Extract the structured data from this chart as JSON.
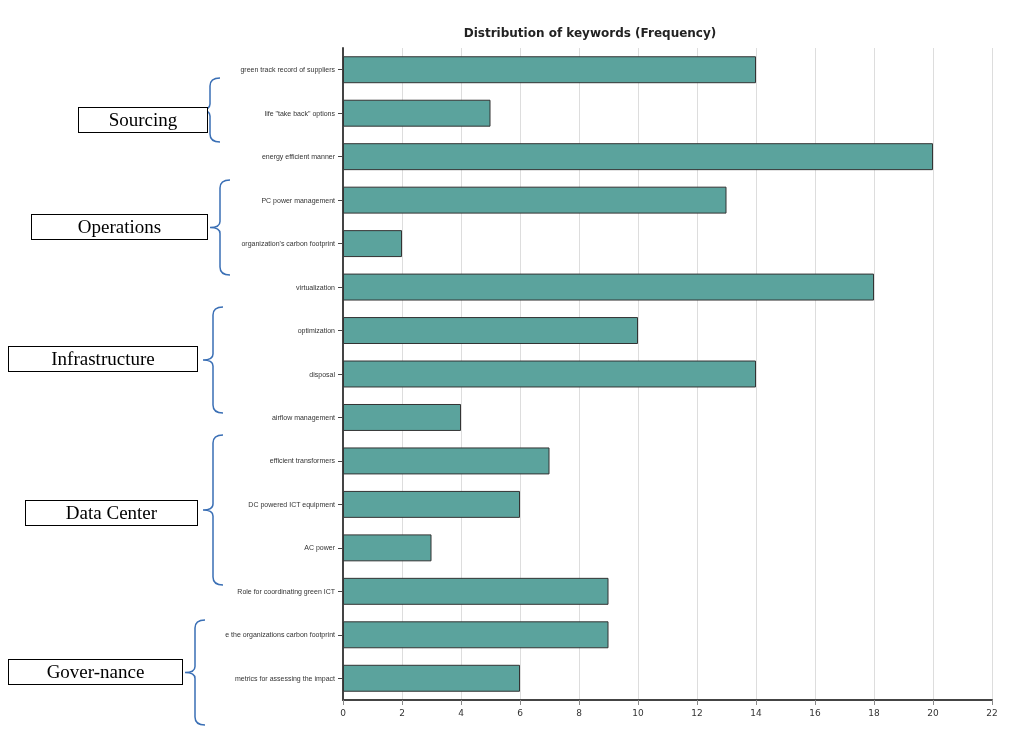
{
  "chart_data": {
    "type": "bar",
    "orientation": "horizontal",
    "title": "Distribution of keywords (Frequency)",
    "categories": [
      "green track record of suppliers",
      "life \"take back\" options",
      "energy efficient manner",
      "PC power management",
      "organization's carbon footprint",
      "virtualization",
      "optimization",
      "disposal",
      "airflow management",
      "efficient transformers",
      "DC powered ICT equipment",
      "AC power",
      "Role for coordinating green ICT",
      "e the organizations carbon footprint",
      "metrics for assessing the impact"
    ],
    "values": [
      14,
      5,
      20,
      13,
      2,
      18,
      10,
      14,
      4,
      7,
      6,
      3,
      9,
      9,
      6
    ],
    "color": "#5ba39d",
    "xlim": [
      0,
      22
    ],
    "xticks": [
      0,
      2,
      4,
      6,
      8,
      10,
      12,
      14,
      16,
      18,
      20,
      22
    ],
    "grid": "x",
    "annotations": [
      "Sourcing",
      "Operations",
      "Infrastructure",
      "Data Center",
      "Gover-nance"
    ]
  }
}
